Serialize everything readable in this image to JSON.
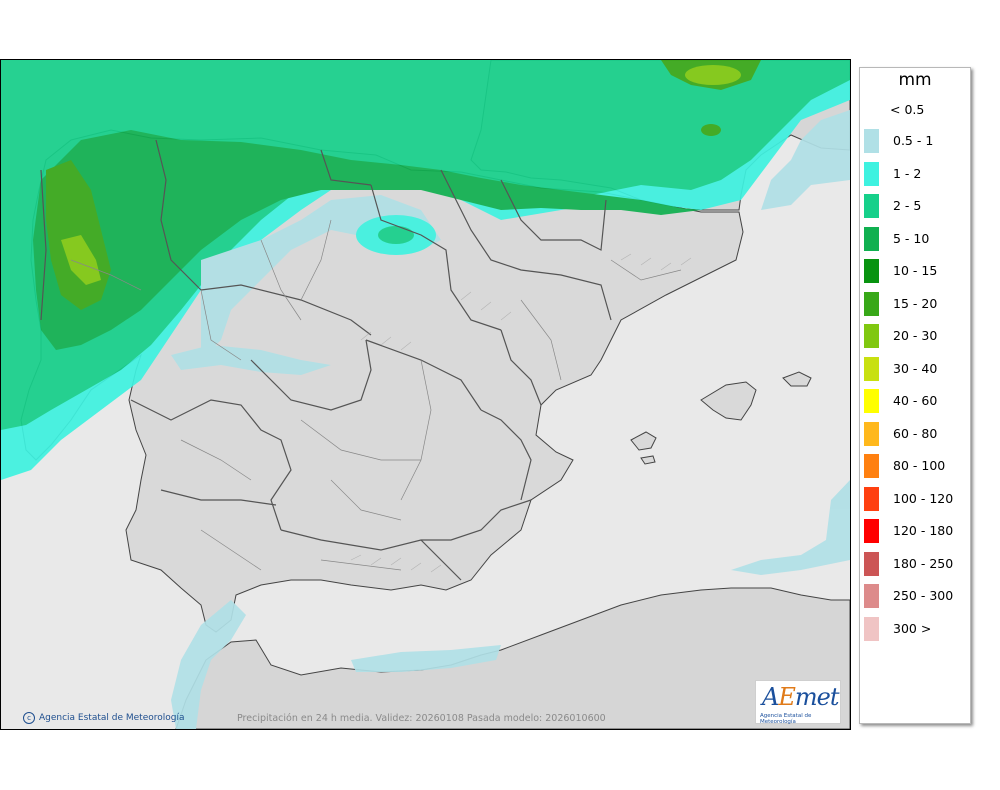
{
  "map": {
    "caption": "Precipitación en 24 h media. Validez: 20260108 Pasada modelo: 2026010600",
    "credit": "Agencia Estatal de Meteorología",
    "logo_text": "AEmet",
    "logo_subtext": "Agencia Estatal de Meteorología"
  },
  "legend": {
    "unit": "mm",
    "lowest_label": "< 0.5",
    "items": [
      {
        "label": "0.5 - 1",
        "color": "#b0e0e6"
      },
      {
        "label": "1 - 2",
        "color": "#3ef2e0"
      },
      {
        "label": "2 - 5",
        "color": "#16d08a"
      },
      {
        "label": "5 - 10",
        "color": "#10b050"
      },
      {
        "label": "10 - 15",
        "color": "#089310"
      },
      {
        "label": "15 - 20",
        "color": "#38a818"
      },
      {
        "label": "20 - 30",
        "color": "#80c810"
      },
      {
        "label": "30 - 40",
        "color": "#c8e010"
      },
      {
        "label": "40 - 60",
        "color": "#ffff00"
      },
      {
        "label": "60 - 80",
        "color": "#ffb81c"
      },
      {
        "label": "80 - 100",
        "color": "#ff8010"
      },
      {
        "label": "100 - 120",
        "color": "#ff4010"
      },
      {
        "label": "120 - 180",
        "color": "#ff0000"
      },
      {
        "label": "180 - 250",
        "color": "#cc5555"
      },
      {
        "label": "250 - 300",
        "color": "#dd8b8b"
      },
      {
        "label": "300 >",
        "color": "#f0c4c4"
      }
    ]
  },
  "colors": {
    "land": "#d9d9d9",
    "sea": "#e9e9e9",
    "border": "#3a3a3a"
  }
}
